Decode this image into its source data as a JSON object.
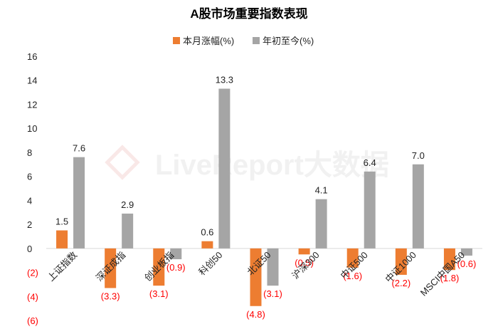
{
  "chart_data": {
    "type": "bar",
    "title": "A股市场重要指数表现",
    "watermark": "LiveReport大数据",
    "categories": [
      "上证指数",
      "深证成指",
      "创业板指",
      "科创50",
      "北证50",
      "沪深300",
      "中证500",
      "中证1000",
      "MSCI中国A50"
    ],
    "series": [
      {
        "name": "本月涨幅(%)",
        "color": "#ED7D31",
        "values": [
          1.5,
          -3.3,
          -3.1,
          0.6,
          -4.8,
          -0.5,
          -1.6,
          -2.2,
          -1.8
        ],
        "labels": [
          "1.5",
          "(3.3)",
          "(3.1)",
          "0.6",
          "(4.8)",
          "(0.5)",
          "(1.6)",
          "(2.2)",
          "(1.8)"
        ]
      },
      {
        "name": "年初至今(%)",
        "color": "#A5A5A5",
        "values": [
          7.6,
          2.9,
          -0.9,
          13.3,
          -3.1,
          4.1,
          6.4,
          7.0,
          -0.6
        ],
        "labels": [
          "7.6",
          "2.9",
          "(0.9)",
          "13.3",
          "(3.1)",
          "4.1",
          "6.4",
          "7.0",
          "(0.6)"
        ]
      }
    ],
    "y_ticks": [
      "16",
      "14",
      "12",
      "10",
      "8",
      "6",
      "4",
      "2",
      "0",
      "(2)",
      "(4)",
      "(6)"
    ],
    "y_tick_values": [
      16,
      14,
      12,
      10,
      8,
      6,
      4,
      2,
      0,
      -2,
      -4,
      -6
    ],
    "ylim": [
      -6,
      16
    ],
    "negative_label_color": "#FF0000",
    "legend_position": "top-center",
    "grid": false
  }
}
